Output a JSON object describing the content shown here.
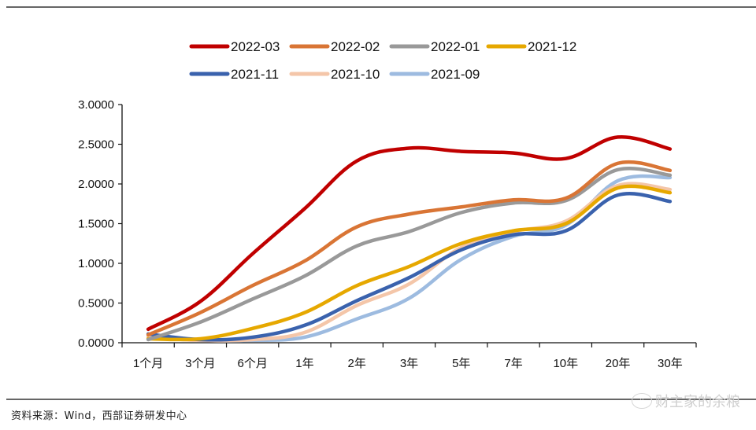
{
  "chart_data": {
    "type": "line",
    "title": "",
    "xlabel": "",
    "ylabel": "",
    "categories": [
      "1个月",
      "3个月",
      "6个月",
      "1年",
      "2年",
      "3年",
      "5年",
      "7年",
      "10年",
      "20年",
      "30年"
    ],
    "ylim": [
      0,
      3
    ],
    "yticks": [
      "0.0000",
      "0.5000",
      "1.0000",
      "1.5000",
      "2.0000",
      "2.5000",
      "3.0000"
    ],
    "ytick_values": [
      0,
      0.5,
      1.0,
      1.5,
      2.0,
      2.5,
      3.0
    ],
    "grid": false,
    "legend_position": "top",
    "series": [
      {
        "name": "2022-03",
        "color": "#c00000",
        "values": [
          0.17,
          0.52,
          1.12,
          1.69,
          2.29,
          2.45,
          2.41,
          2.39,
          2.32,
          2.59,
          2.44
        ]
      },
      {
        "name": "2022-02",
        "color": "#d97535",
        "values": [
          0.1,
          0.38,
          0.72,
          1.03,
          1.46,
          1.62,
          1.71,
          1.8,
          1.82,
          2.26,
          2.17
        ]
      },
      {
        "name": "2022-01",
        "color": "#999999",
        "values": [
          0.04,
          0.26,
          0.55,
          0.84,
          1.22,
          1.4,
          1.64,
          1.76,
          1.79,
          2.18,
          2.11
        ]
      },
      {
        "name": "2021-12",
        "color": "#e6a800",
        "values": [
          0.05,
          0.05,
          0.18,
          0.38,
          0.72,
          0.96,
          1.25,
          1.41,
          1.5,
          1.95,
          1.89
        ]
      },
      {
        "name": "2021-11",
        "color": "#3a62ad",
        "values": [
          0.11,
          0.04,
          0.07,
          0.22,
          0.53,
          0.82,
          1.17,
          1.36,
          1.41,
          1.86,
          1.78
        ]
      },
      {
        "name": "2021-10",
        "color": "#f4c6a9",
        "values": [
          0.07,
          0.03,
          0.04,
          0.13,
          0.47,
          0.74,
          1.2,
          1.4,
          1.53,
          1.98,
          1.93
        ]
      },
      {
        "name": "2021-09",
        "color": "#9dbbe0",
        "values": [
          0.07,
          0.03,
          0.03,
          0.07,
          0.3,
          0.56,
          1.05,
          1.34,
          1.48,
          2.04,
          2.08
        ]
      }
    ]
  },
  "source_text": "资料来源：Wind，西部证券研发中心",
  "watermark": {
    "icon": "wechat-icon",
    "text": "财主家的余粮"
  }
}
